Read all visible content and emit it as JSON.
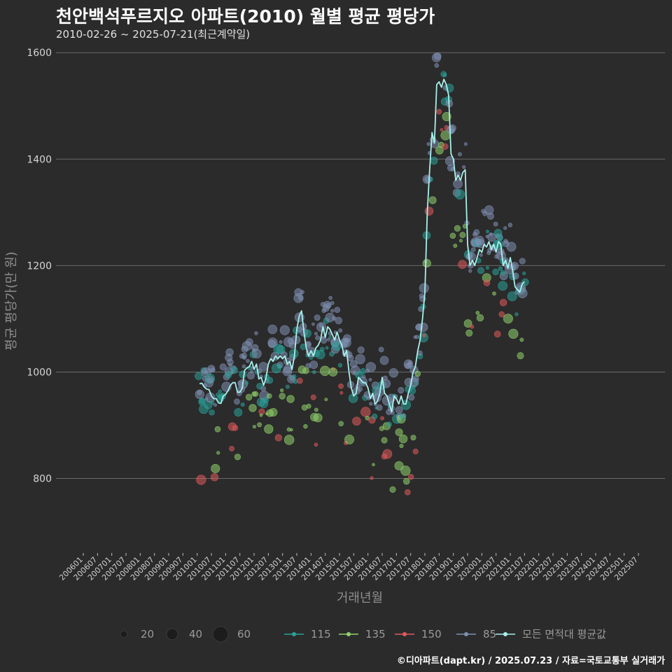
{
  "title": "천안백석푸르지오 아파트(2010) 월별 평균 평당가",
  "subtitle": "2010-02-26 ~ 2025-07-21(최근계약일)",
  "footer": "©디아파트(dapt.kr) / 2025.07.23 / 자료=국토교통부 실거래가",
  "chart_data": {
    "type": "line",
    "xlabel": "거래년월",
    "ylabel": "평균 평당가(만 원)",
    "ylim": [
      660,
      1620
    ],
    "yticks": [
      800,
      1000,
      1200,
      1400,
      1600
    ],
    "x_range": [
      "2006-01",
      "2025-07"
    ],
    "x_tick_labels": [
      "200601",
      "200607",
      "200701",
      "200707",
      "200801",
      "200807",
      "200901",
      "200907",
      "201001",
      "201007",
      "201101",
      "201107",
      "201201",
      "201207",
      "201301",
      "201307",
      "201401",
      "201407",
      "201501",
      "201507",
      "201601",
      "201607",
      "201701",
      "201707",
      "201801",
      "201807",
      "201901",
      "201907",
      "202001",
      "202007",
      "202101",
      "202107",
      "202201",
      "202207",
      "202301",
      "202307",
      "202401",
      "202407",
      "202501",
      "202507"
    ],
    "grid": "horizontal",
    "size_legend": {
      "values": [
        20,
        40,
        60
      ]
    },
    "legend": {
      "placement": "bottom",
      "items": [
        {
          "name": "115",
          "color": "#2aa198"
        },
        {
          "name": "135",
          "color": "#8fd26a"
        },
        {
          "name": "150",
          "color": "#e05a5a"
        },
        {
          "name": "85",
          "color": "#7f8fb0"
        },
        {
          "name": "모든 면적대 평균값",
          "color": "#a8f0ea"
        }
      ]
    },
    "series": [
      {
        "name": "모든 면적대 평균값",
        "color": "#a8f0ea",
        "points": [
          [
            "2010-02",
            978
          ],
          [
            "2010-03",
            979
          ],
          [
            "2010-04",
            972
          ],
          [
            "2010-05",
            968
          ],
          [
            "2010-06",
            967
          ],
          [
            "2010-07",
            955
          ],
          [
            "2010-08",
            950
          ],
          [
            "2010-09",
            950
          ],
          [
            "2010-10",
            942
          ],
          [
            "2010-11",
            941
          ],
          [
            "2010-12",
            955
          ],
          [
            "2011-01",
            958
          ],
          [
            "2011-02",
            965
          ],
          [
            "2011-03",
            975
          ],
          [
            "2011-04",
            980
          ],
          [
            "2011-05",
            980
          ],
          [
            "2011-06",
            962
          ],
          [
            "2011-07",
            962
          ],
          [
            "2011-08",
            970
          ],
          [
            "2011-09",
            1003
          ],
          [
            "2011-10",
            1008
          ],
          [
            "2011-11",
            1010
          ],
          [
            "2011-12",
            1020
          ],
          [
            "2012-01",
            1005
          ],
          [
            "2012-02",
            1015
          ],
          [
            "2012-03",
            987
          ],
          [
            "2012-04",
            990
          ],
          [
            "2012-05",
            975
          ],
          [
            "2012-06",
            988
          ],
          [
            "2012-07",
            1015
          ],
          [
            "2012-08",
            1025
          ],
          [
            "2012-09",
            1020
          ],
          [
            "2012-10",
            1030
          ],
          [
            "2012-11",
            1025
          ],
          [
            "2012-12",
            1030
          ],
          [
            "2013-01",
            1025
          ],
          [
            "2013-02",
            1030
          ],
          [
            "2013-03",
            1015
          ],
          [
            "2013-04",
            1020
          ],
          [
            "2013-05",
            1005
          ],
          [
            "2013-06",
            1030
          ],
          [
            "2013-07",
            1080
          ],
          [
            "2013-08",
            1105
          ],
          [
            "2013-09",
            1115
          ],
          [
            "2013-10",
            1075
          ],
          [
            "2013-11",
            1045
          ],
          [
            "2013-12",
            1030
          ],
          [
            "2014-01",
            1040
          ],
          [
            "2014-02",
            1030
          ],
          [
            "2014-03",
            1045
          ],
          [
            "2014-04",
            1050
          ],
          [
            "2014-05",
            1060
          ],
          [
            "2014-06",
            1085
          ],
          [
            "2014-07",
            1065
          ],
          [
            "2014-08",
            1085
          ],
          [
            "2014-09",
            1080
          ],
          [
            "2014-10",
            1070
          ],
          [
            "2014-11",
            1060
          ],
          [
            "2014-12",
            1075
          ],
          [
            "2015-01",
            1060
          ],
          [
            "2015-02",
            1050
          ],
          [
            "2015-03",
            1030
          ],
          [
            "2015-04",
            1040
          ],
          [
            "2015-05",
            1000
          ],
          [
            "2015-06",
            970
          ],
          [
            "2015-07",
            955
          ],
          [
            "2015-08",
            960
          ],
          [
            "2015-09",
            990
          ],
          [
            "2015-10",
            985
          ],
          [
            "2015-11",
            980
          ],
          [
            "2015-12",
            980
          ],
          [
            "2016-01",
            970
          ],
          [
            "2016-02",
            950
          ],
          [
            "2016-03",
            960
          ],
          [
            "2016-04",
            940
          ],
          [
            "2016-05",
            945
          ],
          [
            "2016-06",
            960
          ],
          [
            "2016-07",
            990
          ],
          [
            "2016-08",
            960
          ],
          [
            "2016-09",
            955
          ],
          [
            "2016-10",
            940
          ],
          [
            "2016-11",
            925
          ],
          [
            "2016-12",
            955
          ],
          [
            "2017-01",
            950
          ],
          [
            "2017-02",
            940
          ],
          [
            "2017-03",
            955
          ],
          [
            "2017-04",
            940
          ],
          [
            "2017-05",
            940
          ],
          [
            "2017-06",
            960
          ],
          [
            "2017-07",
            975
          ],
          [
            "2017-08",
            1000
          ],
          [
            "2017-09",
            1010
          ],
          [
            "2017-10",
            1040
          ],
          [
            "2017-11",
            1060
          ],
          [
            "2017-12",
            1100
          ],
          [
            "2018-01",
            1150
          ],
          [
            "2018-02",
            1300
          ],
          [
            "2018-03",
            1380
          ],
          [
            "2018-04",
            1450
          ],
          [
            "2018-05",
            1430
          ],
          [
            "2018-06",
            1540
          ],
          [
            "2018-07",
            1545
          ],
          [
            "2018-08",
            1535
          ],
          [
            "2018-09",
            1550
          ],
          [
            "2018-10",
            1540
          ],
          [
            "2018-11",
            1520
          ],
          [
            "2018-12",
            1410
          ],
          [
            "2019-01",
            1400
          ],
          [
            "2019-02",
            1360
          ],
          [
            "2019-03",
            1370
          ],
          [
            "2019-04",
            1360
          ],
          [
            "2019-05",
            1375
          ],
          [
            "2019-06",
            1380
          ],
          [
            "2019-07",
            1240
          ],
          [
            "2019-08",
            1200
          ],
          [
            "2019-09",
            1210
          ],
          [
            "2019-10",
            1200
          ],
          [
            "2019-11",
            1215
          ],
          [
            "2019-12",
            1230
          ],
          [
            "2020-01",
            1225
          ],
          [
            "2020-02",
            1240
          ],
          [
            "2020-03",
            1235
          ],
          [
            "2020-04",
            1245
          ],
          [
            "2020-05",
            1230
          ],
          [
            "2020-06",
            1240
          ],
          [
            "2020-07",
            1225
          ],
          [
            "2020-08",
            1245
          ],
          [
            "2020-09",
            1240
          ],
          [
            "2020-10",
            1200
          ],
          [
            "2020-11",
            1210
          ],
          [
            "2020-12",
            1195
          ],
          [
            "2021-01",
            1215
          ],
          [
            "2021-02",
            1190
          ],
          [
            "2021-03",
            1160
          ],
          [
            "2021-04",
            1155
          ],
          [
            "2021-05",
            1150
          ],
          [
            "2021-06",
            1165
          ],
          [
            "2021-07",
            1170
          ]
        ]
      }
    ]
  }
}
